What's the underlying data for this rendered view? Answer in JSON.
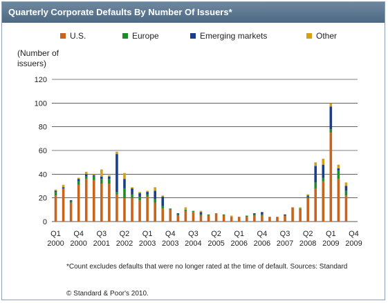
{
  "chart_data": {
    "type": "bar",
    "stacked": true,
    "title": "Quarterly Corporate Defaults By Number Of Issuers*",
    "ylabel": "(Number of issuers)",
    "ylim": [
      0,
      120
    ],
    "yticks": [
      0,
      20,
      40,
      60,
      80,
      100,
      120
    ],
    "grid": true,
    "legend_position": "top",
    "x_tick_labels": [
      {
        "index": 0,
        "quarter": "Q1",
        "year": "2000"
      },
      {
        "index": 3,
        "quarter": "Q4",
        "year": "2000"
      },
      {
        "index": 6,
        "quarter": "Q3",
        "year": "2001"
      },
      {
        "index": 9,
        "quarter": "Q2",
        "year": "2002"
      },
      {
        "index": 12,
        "quarter": "Q1",
        "year": "2003"
      },
      {
        "index": 15,
        "quarter": "Q4",
        "year": "2003"
      },
      {
        "index": 18,
        "quarter": "Q3",
        "year": "2004"
      },
      {
        "index": 21,
        "quarter": "Q2",
        "year": "2005"
      },
      {
        "index": 24,
        "quarter": "Q1",
        "year": "2006"
      },
      {
        "index": 27,
        "quarter": "Q4",
        "year": "2006"
      },
      {
        "index": 30,
        "quarter": "Q3",
        "year": "2007"
      },
      {
        "index": 33,
        "quarter": "Q2",
        "year": "2008"
      },
      {
        "index": 36,
        "quarter": "Q1",
        "year": "2009"
      },
      {
        "index": 39,
        "quarter": "Q4",
        "year": "2009"
      }
    ],
    "categories": [
      "Q1 2000",
      "Q2 2000",
      "Q3 2000",
      "Q4 2000",
      "Q1 2001",
      "Q2 2001",
      "Q3 2001",
      "Q4 2001",
      "Q1 2002",
      "Q2 2002",
      "Q3 2002",
      "Q4 2002",
      "Q1 2003",
      "Q2 2003",
      "Q3 2003",
      "Q4 2003",
      "Q1 2004",
      "Q2 2004",
      "Q3 2004",
      "Q4 2004",
      "Q1 2005",
      "Q2 2005",
      "Q3 2005",
      "Q4 2005",
      "Q1 2006",
      "Q2 2006",
      "Q3 2006",
      "Q4 2006",
      "Q1 2007",
      "Q2 2007",
      "Q3 2007",
      "Q4 2007",
      "Q1 2008",
      "Q2 2008",
      "Q3 2008",
      "Q4 2008",
      "Q1 2009",
      "Q2 2009",
      "Q3 2009",
      "Q4 2009"
    ],
    "series": [
      {
        "name": "U.S.",
        "color": "#c8641c",
        "values": [
          22,
          28,
          16,
          31,
          36,
          35,
          32,
          32,
          23,
          20,
          20,
          18,
          21,
          16,
          11,
          10,
          5,
          9,
          8,
          5,
          5,
          7,
          5,
          4,
          4,
          4,
          5,
          5,
          4,
          4,
          5,
          12,
          10,
          20,
          28,
          34,
          75,
          36,
          22,
          0
        ]
      },
      {
        "name": "Europe",
        "color": "#1e8c28",
        "values": [
          3,
          0,
          1,
          3,
          2,
          3,
          4,
          4,
          2,
          8,
          3,
          3,
          2,
          3,
          2,
          1,
          1,
          1,
          1,
          1,
          1,
          0,
          1,
          0,
          0,
          1,
          1,
          1,
          0,
          0,
          0,
          0,
          1,
          1,
          5,
          3,
          3,
          7,
          4,
          0
        ]
      },
      {
        "name": "Emerging markets",
        "color": "#1a3d8c",
        "values": [
          1,
          1,
          1,
          2,
          2,
          1,
          2,
          2,
          32,
          8,
          5,
          3,
          2,
          7,
          8,
          0,
          1,
          0,
          0,
          2,
          0,
          0,
          0,
          0,
          0,
          0,
          1,
          2,
          0,
          0,
          1,
          0,
          0,
          1,
          14,
          11,
          19,
          2,
          4,
          0
        ]
      },
      {
        "name": "Other",
        "color": "#d4a017",
        "values": [
          1,
          2,
          0,
          1,
          2,
          1,
          6,
          1,
          2,
          5,
          1,
          1,
          1,
          3,
          1,
          0,
          0,
          2,
          0,
          1,
          0,
          0,
          0,
          1,
          0,
          0,
          0,
          0,
          0,
          0,
          0,
          0,
          1,
          1,
          3,
          5,
          3,
          3,
          3,
          0
        ]
      }
    ]
  },
  "footnote": "*Count excludes defaults that were no longer rated at the time of default. Sources: Standard",
  "copyright": "© Standard & Poor's 2010."
}
